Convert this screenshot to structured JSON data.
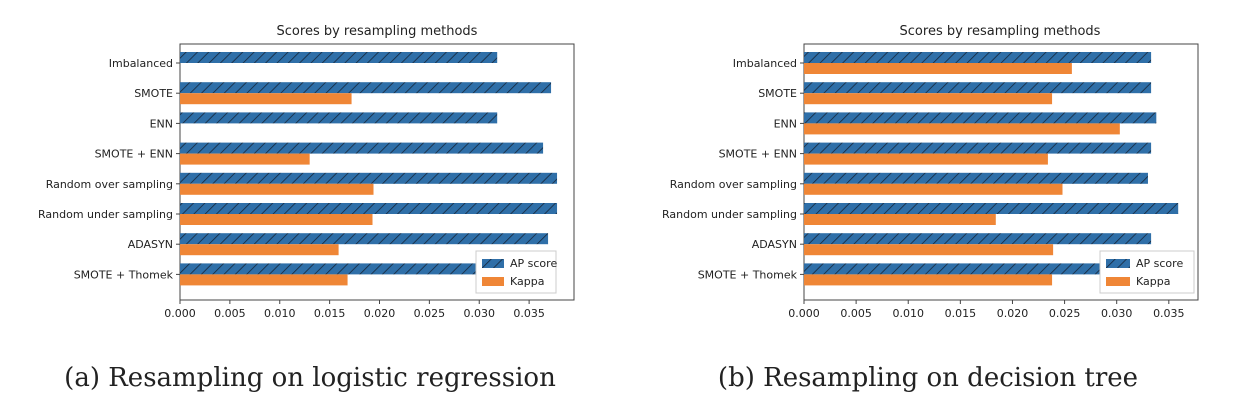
{
  "colors": {
    "ap": "#2f6fa8",
    "kappa": "#ef8636",
    "hatch": "#16263a"
  },
  "chart_data": [
    {
      "type": "bar",
      "orientation": "horizontal",
      "title": "Scores by resampling methods",
      "caption": "(a) Resampling on logistic regression",
      "categories": [
        "Imbalanced",
        "SMOTE",
        "ENN",
        "SMOTE + ENN",
        "Random over sampling",
        "Random under sampling",
        "ADASYN",
        "SMOTE + Thomek"
      ],
      "series": [
        {
          "name": "AP score",
          "values": [
            0.0318,
            0.0372,
            0.0318,
            0.0364,
            0.0378,
            0.0378,
            0.0369,
            0.0368
          ]
        },
        {
          "name": "Kappa",
          "values": [
            0.0,
            0.0172,
            0.0,
            0.013,
            0.0194,
            0.0193,
            0.0159,
            0.0168
          ]
        }
      ],
      "xticks": [
        "0.000",
        "0.005",
        "0.010",
        "0.015",
        "0.020",
        "0.025",
        "0.030",
        "0.035"
      ],
      "xlim": [
        0,
        0.0395
      ],
      "legend": "lower-right"
    },
    {
      "type": "bar",
      "orientation": "horizontal",
      "title": "Scores by resampling methods",
      "caption": "(b) Resampling on decision tree",
      "categories": [
        "Imbalanced",
        "SMOTE",
        "ENN",
        "SMOTE + ENN",
        "Random over sampling",
        "Random under sampling",
        "ADASYN",
        "SMOTE + Thomek"
      ],
      "series": [
        {
          "name": "AP score",
          "values": [
            0.0333,
            0.0333,
            0.0338,
            0.0333,
            0.033,
            0.0359,
            0.0333,
            0.0331
          ]
        },
        {
          "name": "Kappa",
          "values": [
            0.0257,
            0.0238,
            0.0303,
            0.0234,
            0.0248,
            0.0184,
            0.0239,
            0.0238
          ]
        }
      ],
      "xticks": [
        "0.000",
        "0.005",
        "0.010",
        "0.015",
        "0.020",
        "0.025",
        "0.030",
        "0.035"
      ],
      "xlim": [
        0,
        0.0378
      ],
      "legend": "lower-right"
    }
  ]
}
